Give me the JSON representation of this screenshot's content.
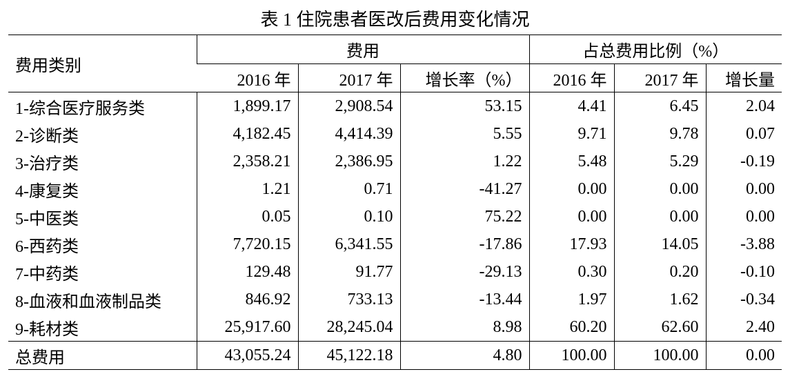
{
  "title": "表 1 住院患者医改后费用变化情况",
  "table": {
    "header": {
      "category": "费用类别",
      "group1": "费用",
      "group2": "占总费用比例（%）",
      "sub": [
        "2016 年",
        "2017 年",
        "增长率（%）",
        "2016 年",
        "2017 年",
        "增长量"
      ]
    },
    "rows": [
      [
        "1-综合医疗服务类",
        "1,899.17",
        "2,908.54",
        "53.15",
        "4.41",
        "6.45",
        "2.04"
      ],
      [
        "2-诊断类",
        "4,182.45",
        "4,414.39",
        "5.55",
        "9.71",
        "9.78",
        "0.07"
      ],
      [
        "3-治疗类",
        "2,358.21",
        "2,386.95",
        "1.22",
        "5.48",
        "5.29",
        "-0.19"
      ],
      [
        "4-康复类",
        "1.21",
        "0.71",
        "-41.27",
        "0.00",
        "0.00",
        "0.00"
      ],
      [
        "5-中医类",
        "0.05",
        "0.10",
        "75.22",
        "0.00",
        "0.00",
        "0.00"
      ],
      [
        "6-西药类",
        "7,720.15",
        "6,341.55",
        "-17.86",
        "17.93",
        "14.05",
        "-3.88"
      ],
      [
        "7-中药类",
        "129.48",
        "91.77",
        "-29.13",
        "0.30",
        "0.20",
        "-0.10"
      ],
      [
        "8-血液和血液制品类",
        "846.92",
        "733.13",
        "-13.44",
        "1.97",
        "1.62",
        "-0.34"
      ],
      [
        "9-耗材类",
        "25,917.60",
        "28,245.04",
        "8.98",
        "60.20",
        "62.60",
        "2.40"
      ],
      [
        "总费用",
        "43,055.24",
        "45,122.18",
        "4.80",
        "100.00",
        "100.00",
        "0.00"
      ]
    ]
  }
}
